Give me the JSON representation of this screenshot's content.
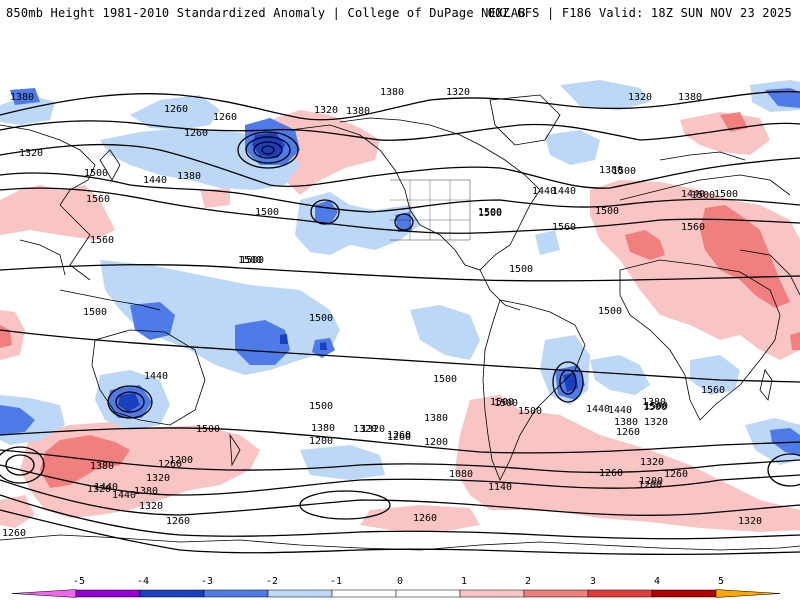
{
  "header": {
    "title_left": "850mb Height 1981-2010 Standardized Anomaly | College of DuPage NEXLAB",
    "title_right": "00Z GFS | F186 Valid: 18Z SUN NOV 23 2025"
  },
  "colors": {
    "neg5": "#ee66ee",
    "neg4": "#9400d3",
    "neg3": "#1a3fbf",
    "neg2": "#4f7be8",
    "neg1": "#bcd8f6",
    "zero": "#ffffff",
    "pos1": "#f9c4c4",
    "pos2": "#f0807e",
    "pos3": "#e03d3a",
    "pos4": "#b00000",
    "pos5": "#ffa500",
    "contour": "#000000",
    "coast": "#000000"
  },
  "colorbar": {
    "labels": [
      "-5",
      "-4",
      "-3",
      "-2",
      "-1",
      "0",
      "1",
      "2",
      "3",
      "4",
      "5"
    ]
  },
  "contour_labels": [
    "1380",
    "1320",
    "1380",
    "1320",
    "1380",
    "1260",
    "1320",
    "1380",
    "1260",
    "1320",
    "1380",
    "1440",
    "1500",
    "1560",
    "1440",
    "1500",
    "1440",
    "1500",
    "1560",
    "1500",
    "1380",
    "1260",
    "1500",
    "1440",
    "1500",
    "1560",
    "1560",
    "1500",
    "1500",
    "1500",
    "1500",
    "1500",
    "1500",
    "1500",
    "1560",
    "1500",
    "1440",
    "1500",
    "1440",
    "1380",
    "1320",
    "1260",
    "1500",
    "1500",
    "1380",
    "1320",
    "1260",
    "1200",
    "1260",
    "1320",
    "1380",
    "1440",
    "1200",
    "1500",
    "1380",
    "1320",
    "1260",
    "1200",
    "1260",
    "1200",
    "1320",
    "1380",
    "1440",
    "1260",
    "1080",
    "1140",
    "1320",
    "1200",
    "1260",
    "1260",
    "1320",
    "1500",
    "1500",
    "1500",
    "1440",
    "1500",
    "1380",
    "1320",
    "1260"
  ],
  "icons": {
    "colorbar-left-arrow": "triangle",
    "colorbar-right-arrow": "triangle"
  }
}
